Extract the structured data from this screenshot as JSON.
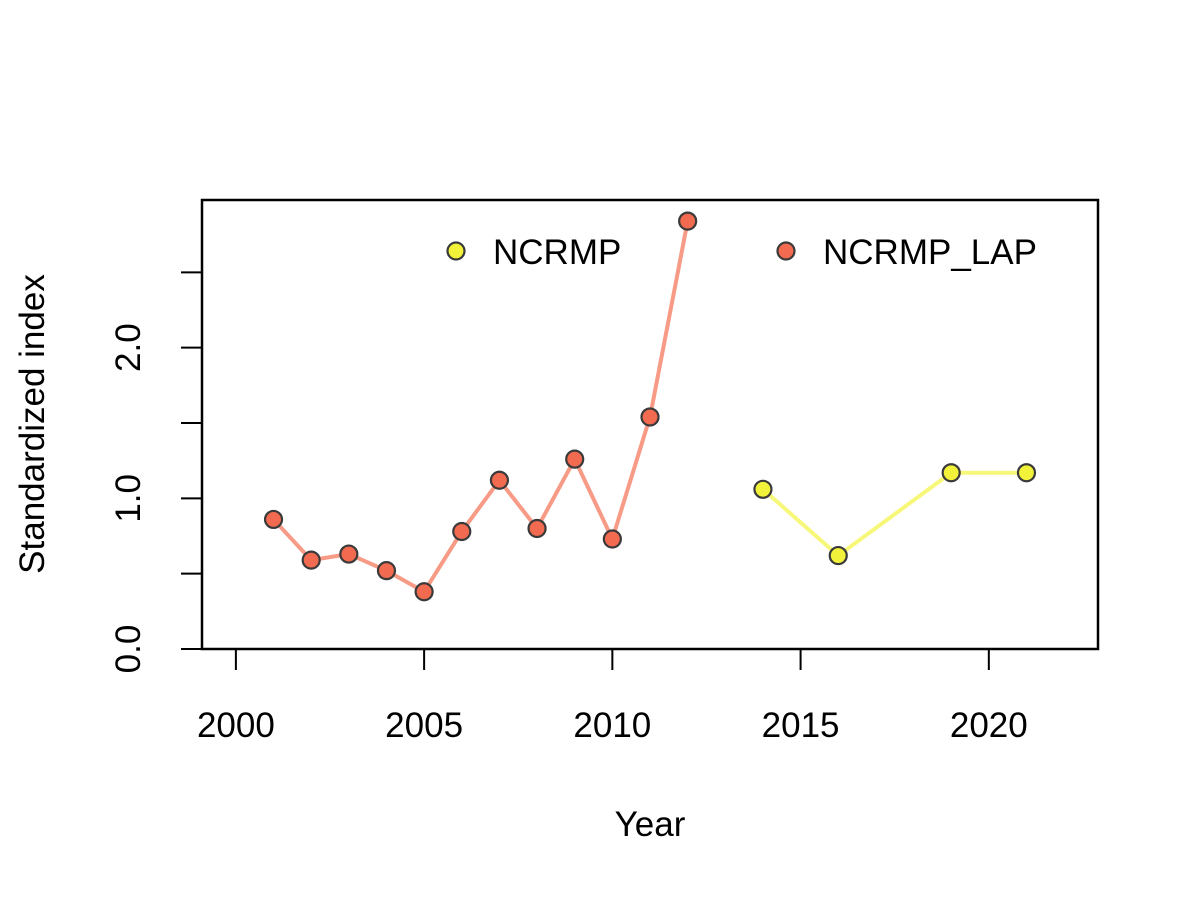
{
  "chart_data": {
    "type": "line",
    "title": "",
    "xlabel": "Year",
    "ylabel": "Standardized index",
    "xlim": [
      1999.1,
      2022.9
    ],
    "ylim": [
      0.0,
      2.98
    ],
    "xticks": [
      2000,
      2005,
      2010,
      2015,
      2020
    ],
    "xtick_labels": [
      "2000",
      "2005",
      "2010",
      "2015",
      "2020"
    ],
    "yticks": [
      0.0,
      0.5,
      1.0,
      1.5,
      2.0,
      2.5
    ],
    "ytick_labels": [
      "0.0",
      "",
      "1.0",
      "",
      "2.0",
      ""
    ],
    "grid": false,
    "legend_position": "top",
    "series": [
      {
        "name": "NCRMP",
        "line_color": "#F7F77A",
        "point_color": "#F2F23A",
        "x": [
          2014,
          2016,
          2019,
          2021
        ],
        "y": [
          1.06,
          0.62,
          1.17,
          1.17
        ]
      },
      {
        "name": "NCRMP_LAP",
        "line_color": "#F79A86",
        "point_color": "#F26A4F",
        "x": [
          2001,
          2002,
          2003,
          2004,
          2005,
          2006,
          2007,
          2008,
          2009,
          2010,
          2011,
          2012
        ],
        "y": [
          0.86,
          0.59,
          0.63,
          0.52,
          0.38,
          0.78,
          1.12,
          0.8,
          1.26,
          0.73,
          1.54,
          2.84
        ]
      }
    ]
  }
}
